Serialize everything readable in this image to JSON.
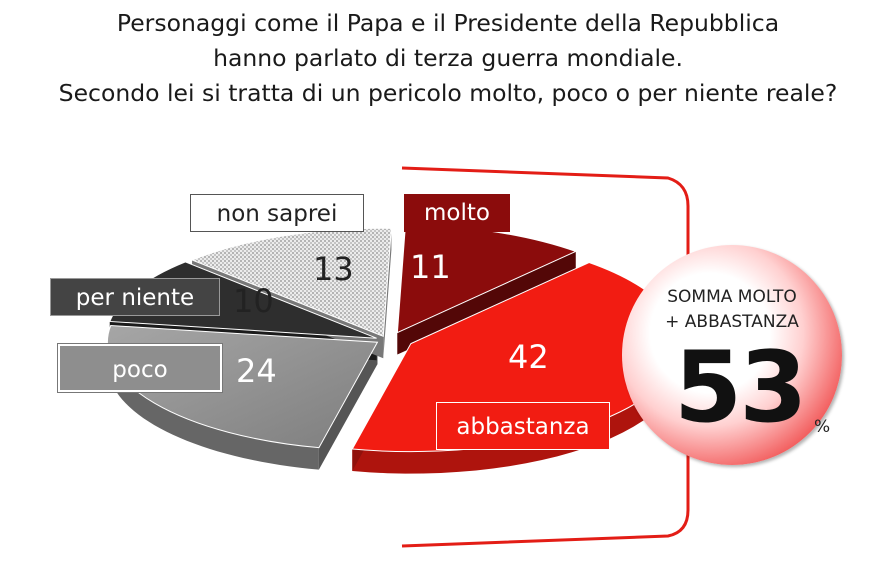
{
  "title_lines": [
    "Personaggi come il Papa e il Presidente della Repubblica",
    "hanno parlato di terza guerra mondiale.",
    "Secondo lei si tratta di un pericolo molto, poco o per niente reale?"
  ],
  "chart_data": {
    "type": "pie",
    "title": "Personaggi come il Papa e il Presidente della Repubblica hanno parlato di terza guerra mondiale. Secondo lei si tratta di un pericolo molto, poco o per niente reale?",
    "slices": [
      {
        "label": "molto",
        "value": 11,
        "color": "#8b0c0c"
      },
      {
        "label": "abbastanza",
        "value": 42,
        "color": "#f21c12"
      },
      {
        "label": "poco",
        "value": 24,
        "color": "#8e8e8e"
      },
      {
        "label": "per niente",
        "value": 10,
        "color": "#2e2e2e"
      },
      {
        "label": "non saprei",
        "value": 13,
        "color": "#d8d8d8"
      }
    ],
    "summary": {
      "line1": "SOMMA MOLTO",
      "line2": "+ ABBASTANZA",
      "value": "53",
      "unit": "%"
    }
  }
}
